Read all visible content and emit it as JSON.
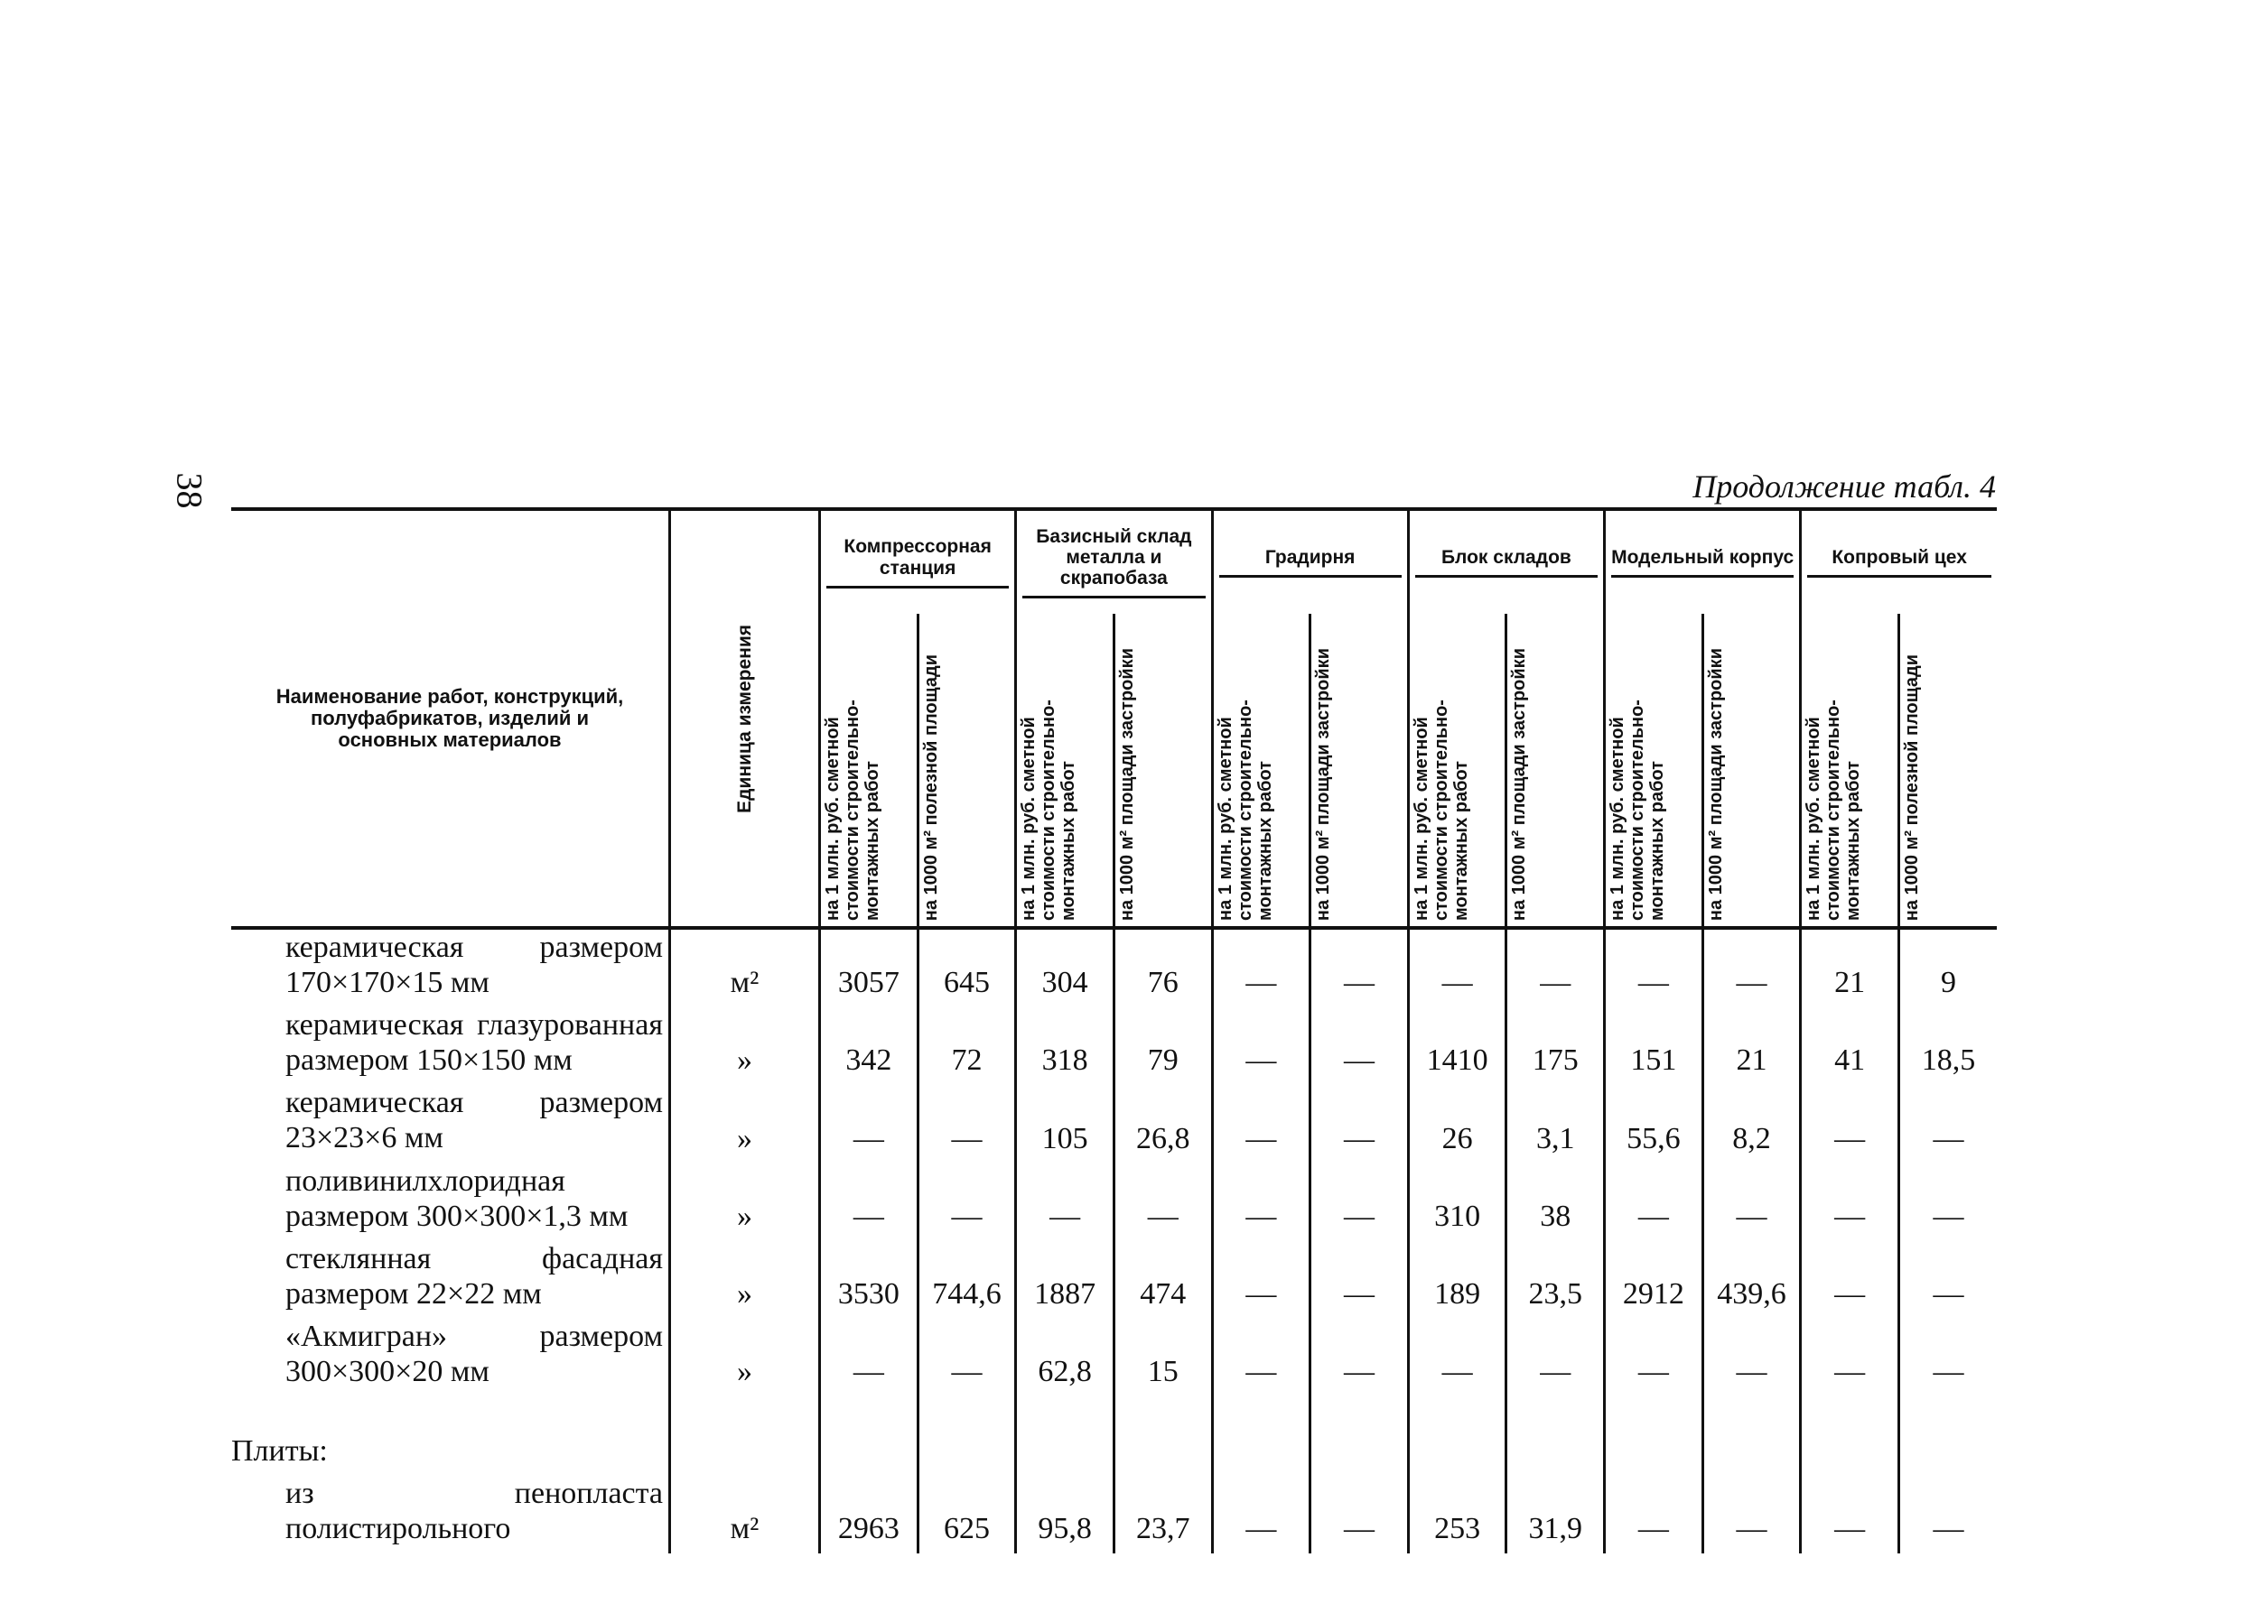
{
  "page_number": "38",
  "caption": "Продолжение табл. 4",
  "table": {
    "header": {
      "name_col": "Наименование работ, конструкций, полуфабрикатов, изделий и основных материалов",
      "unit_col": "Единица измерения",
      "groups": [
        {
          "name": "Компрессорная станция",
          "sub": [
            "на 1 млн. руб. сметной стоимости строительно-монтажных работ",
            "на 1000 м² полезной площади"
          ]
        },
        {
          "name": "Базисный склад металла и скрапобаза",
          "sub": [
            "на 1 млн. руб. сметной стоимости строительно-монтажных работ",
            "на 1000 м² площади застройки"
          ]
        },
        {
          "name": "Градирня",
          "sub": [
            "на 1 млн. руб. сметной стоимости строительно-монтажных работ",
            "на 1000 м² площади застройки"
          ]
        },
        {
          "name": "Блок складов",
          "sub": [
            "на 1 млн. руб. сметной стоимости строительно-монтажных работ",
            "на 1000 м² площади застройки"
          ]
        },
        {
          "name": "Модельный корпус",
          "sub": [
            "на 1 млн. руб. сметной стоимости строительно-монтажных работ",
            "на 1000 м² площади застройки"
          ]
        },
        {
          "name": "Копровый цех",
          "sub": [
            "на 1 млн. руб. сметной стоимости строительно-монтажных работ",
            "на 1000 м² полезной площади"
          ]
        }
      ]
    },
    "rows": [
      {
        "name": "керамическая размером 170×170×15 мм",
        "unit": "м²",
        "values": [
          "3057",
          "645",
          "304",
          "76",
          "—",
          "—",
          "—",
          "—",
          "—",
          "—",
          "21",
          "9"
        ]
      },
      {
        "name": "керамическая глазурованная размером 150×150 мм",
        "unit": "»",
        "values": [
          "342",
          "72",
          "318",
          "79",
          "—",
          "—",
          "1410",
          "175",
          "151",
          "21",
          "41",
          "18,5"
        ]
      },
      {
        "name": "керамическая размером 23×23×6 мм",
        "unit": "»",
        "values": [
          "—",
          "—",
          "105",
          "26,8",
          "—",
          "—",
          "26",
          "3,1",
          "55,6",
          "8,2",
          "—",
          "—"
        ]
      },
      {
        "name": "поливинилхлоридная размером 300×300×1,3 мм",
        "unit": "»",
        "values": [
          "—",
          "—",
          "—",
          "—",
          "—",
          "—",
          "310",
          "38",
          "—",
          "—",
          "—",
          "—"
        ]
      },
      {
        "name": "стеклянная фасадная размером 22×22 мм",
        "unit": "»",
        "values": [
          "3530",
          "744,6",
          "1887",
          "474",
          "—",
          "—",
          "189",
          "23,5",
          "2912",
          "439,6",
          "—",
          "—"
        ]
      },
      {
        "name": "«Акмигран» размером 300×300×20 мм",
        "unit": "»",
        "values": [
          "—",
          "—",
          "62,8",
          "15",
          "—",
          "—",
          "—",
          "—",
          "—",
          "—",
          "—",
          "—"
        ]
      },
      {
        "section": "Плиты:"
      },
      {
        "name": "из пенопласта полистирольного",
        "unit": "м²",
        "values": [
          "2963",
          "625",
          "95,8",
          "23,7",
          "—",
          "—",
          "253",
          "31,9",
          "—",
          "—",
          "—",
          "—"
        ]
      }
    ]
  }
}
